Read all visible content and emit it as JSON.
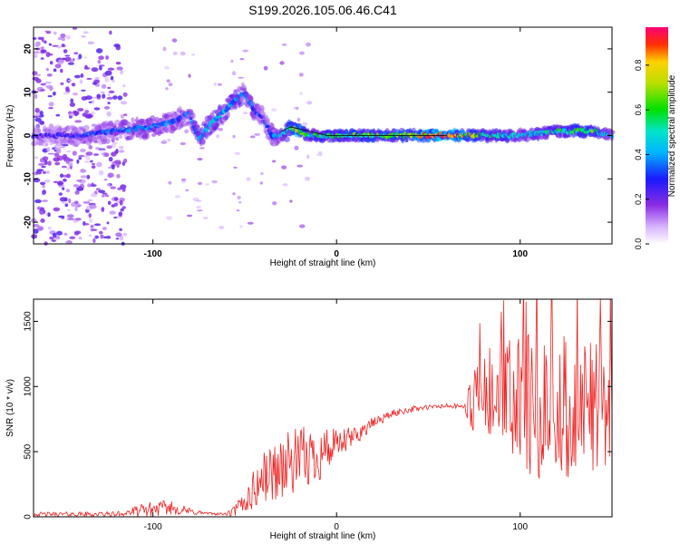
{
  "figure": {
    "title": "S199.2026.105.06.46.C41"
  },
  "chart_data": [
    {
      "type": "heatmap",
      "title": "S199.2026.105.06.46.C41",
      "xlabel": "Height of straight line (km)",
      "ylabel": "Frequency (Hz)",
      "xlim": [
        -165,
        150
      ],
      "ylim": [
        -25,
        25
      ],
      "xticks": [
        -100,
        0,
        100
      ],
      "yticks": [
        -20,
        -10,
        0,
        10,
        20
      ],
      "colorbar": {
        "label": "Normalized spectral amplitude",
        "range": [
          0,
          1
        ],
        "ticks": [
          "0.0",
          "0.2",
          "0.4",
          "0.6",
          "0.8"
        ],
        "colormap": "rainbow (white-violet-blue-cyan-green-yellow-red-pink)"
      },
      "ridge": {
        "x": [
          -165,
          -140,
          -120,
          -100,
          -90,
          -80,
          -75,
          -70,
          -60,
          -50,
          -45,
          -40,
          -35,
          -30,
          -25,
          -20,
          -15,
          -10,
          0,
          20,
          40,
          60,
          80,
          100,
          120,
          140,
          150
        ],
        "freq": [
          0,
          0,
          1,
          2,
          3,
          5,
          -1,
          2,
          6,
          10,
          6,
          4,
          0,
          0,
          2,
          1,
          0,
          0,
          0,
          0,
          0,
          0,
          0,
          0,
          1,
          1,
          0
        ],
        "amp": [
          0.25,
          0.3,
          0.35,
          0.4,
          0.35,
          0.35,
          0.45,
          0.45,
          0.45,
          0.4,
          0.35,
          0.3,
          0.35,
          0.45,
          0.65,
          0.85,
          0.5,
          0.6,
          0.6,
          0.65,
          0.7,
          1.0,
          0.6,
          0.45,
          0.55,
          0.65,
          0.4
        ]
      }
    },
    {
      "type": "line",
      "title": "",
      "xlabel": "Height of straight line (km)",
      "ylabel": "SNR (10 * v/v)",
      "xlim": [
        -165,
        150
      ],
      "ylim": [
        0,
        1670
      ],
      "xticks": [
        -100,
        0,
        100
      ],
      "yticks": [
        0,
        500,
        1000,
        1500
      ],
      "series": [
        {
          "name": "SNR",
          "color": "#ee2222",
          "envelope": {
            "x": [
              -165,
              -120,
              -110,
              -100,
              -90,
              -80,
              -70,
              -60,
              -55,
              -50,
              -45,
              -40,
              -30,
              -20,
              -10,
              -5,
              0,
              10,
              20,
              30,
              40,
              50,
              60,
              70,
              72,
              80,
              90,
              100,
              110,
              120,
              130,
              140,
              150
            ],
            "mid": [
              20,
              20,
              40,
              60,
              70,
              40,
              25,
              20,
              40,
              120,
              200,
              300,
              380,
              430,
              480,
              520,
              540,
              620,
              720,
              790,
              825,
              840,
              850,
              845,
              850,
              850,
              850,
              850,
              850,
              850,
              850,
              850,
              850
            ],
            "amp": [
              15,
              20,
              40,
              60,
              55,
              30,
              10,
              10,
              60,
              110,
              160,
              200,
              260,
              260,
              220,
              200,
              120,
              80,
              45,
              30,
              25,
              20,
              20,
              20,
              180,
              420,
              520,
              560,
              580,
              560,
              540,
              520,
              480
            ]
          }
        }
      ]
    }
  ],
  "colors": {
    "axis": "#000000",
    "line": "#ee2222",
    "ridge_outline": "#000000"
  }
}
